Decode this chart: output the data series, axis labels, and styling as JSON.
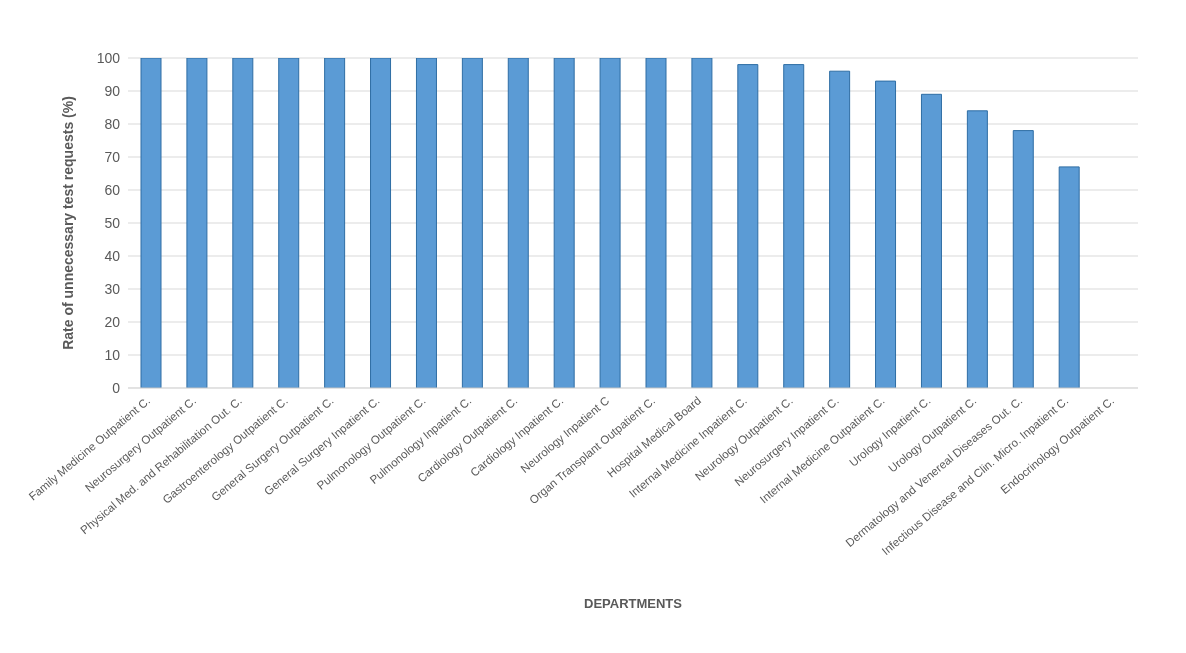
{
  "chart_data": {
    "type": "bar",
    "xlabel": "DEPARTMENTS",
    "ylabel": "Rate of unnecessary test requests (%)",
    "categories": [
      "Family Medicine Outpatient C.",
      "Neurosurgery Outpatient C.",
      "Physical Med. and Rehabilitation Out. C.",
      "Gastroenterology Outpatient C.",
      "General Surgery Outpatient C.",
      "General Surgery Inpatient C.",
      "Pulmonology Outpatient C.",
      "Pulmonology Inpatient C.",
      "Cardiology Outpatient C.",
      "Cardiology Inpatient C.",
      "Neurology Inpatient C",
      "Organ Transplant Outpatient C.",
      "Hospital Medical Board",
      "Internal Medicine Inpatient C.",
      "Neurology Outpatient C.",
      "Neurosurgery Inpatient C.",
      "Internal Medicine Outpatient C.",
      "Urology Inpatient C.",
      "Urology Outpatient C.",
      "Dermatology and Venereal Diseases Out. C.",
      "Infectious Disease and Clin. Micro. Inpatient C.",
      "Endocrinology Outpatient C."
    ],
    "values": [
      100,
      100,
      100,
      100,
      100,
      100,
      100,
      100,
      100,
      100,
      100,
      100,
      100,
      98,
      98,
      96,
      93,
      89,
      84,
      78,
      67,
      0
    ],
    "color": "#5b9bd5",
    "ylim": [
      0,
      100
    ],
    "yticks": [
      0,
      10,
      20,
      30,
      40,
      50,
      60,
      70,
      80,
      90,
      100
    ],
    "grid": "y"
  }
}
